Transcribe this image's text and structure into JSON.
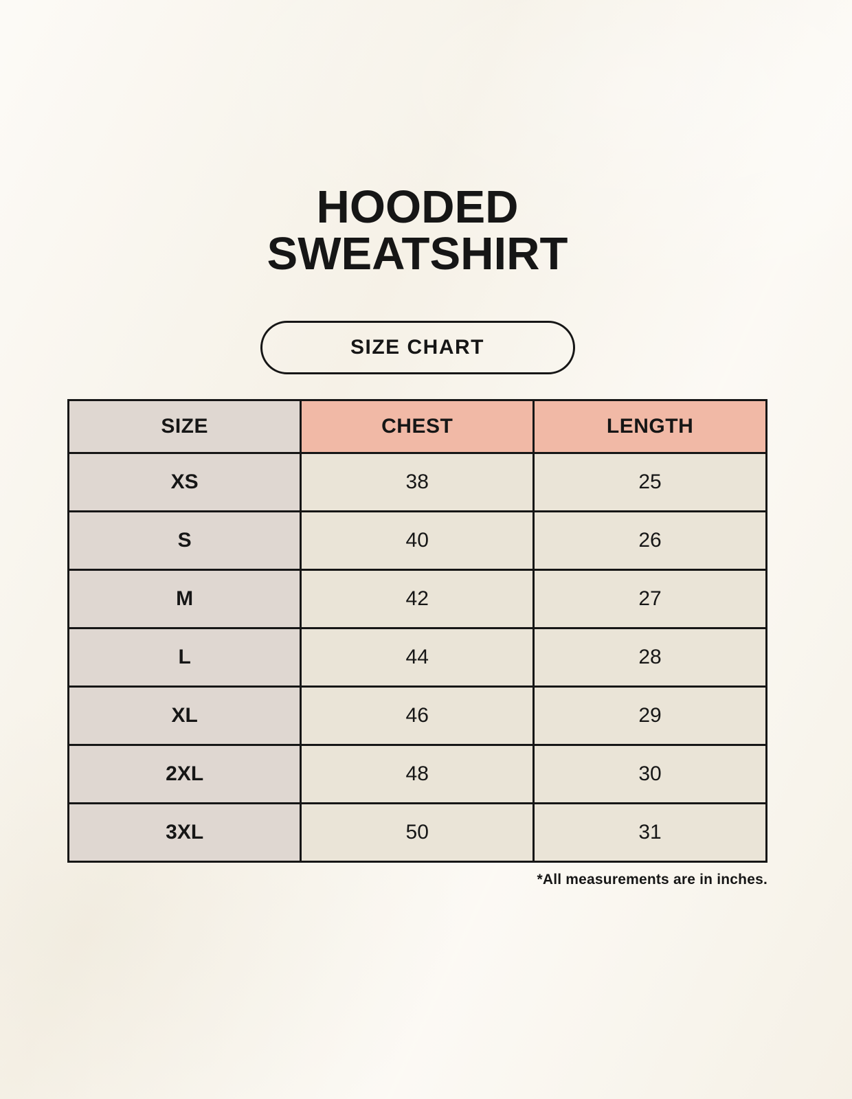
{
  "title": {
    "line1": "HOODED",
    "line2": "SWEATSHIRT"
  },
  "badge": {
    "label": "SIZE CHART"
  },
  "table": {
    "columns": [
      "SIZE",
      "CHEST",
      "LENGTH"
    ],
    "rows": [
      [
        "XS",
        "38",
        "25"
      ],
      [
        "S",
        "40",
        "26"
      ],
      [
        "M",
        "42",
        "27"
      ],
      [
        "L",
        "44",
        "28"
      ],
      [
        "XL",
        "46",
        "29"
      ],
      [
        "2XL",
        "48",
        "30"
      ],
      [
        "3XL",
        "50",
        "31"
      ]
    ]
  },
  "footnote": "*All measurements are in inches.",
  "colors": {
    "page-bg": "#F9F5EC",
    "header-accent": "#F1B9A6",
    "size-col-bg": "#DFD7D1",
    "cell-bg": "#EAE4D7",
    "line": "#161616",
    "ink": "#161616"
  },
  "chart_data": {
    "type": "table",
    "title": "HOODED SWEATSHIRT SIZE CHART",
    "columns": [
      "SIZE",
      "CHEST",
      "LENGTH"
    ],
    "units": "inches",
    "rows": [
      {
        "size": "XS",
        "chest": 38,
        "length": 25
      },
      {
        "size": "S",
        "chest": 40,
        "length": 26
      },
      {
        "size": "M",
        "chest": 42,
        "length": 27
      },
      {
        "size": "L",
        "chest": 44,
        "length": 28
      },
      {
        "size": "XL",
        "chest": 46,
        "length": 29
      },
      {
        "size": "2XL",
        "chest": 48,
        "length": 30
      },
      {
        "size": "3XL",
        "chest": 50,
        "length": 31
      }
    ]
  }
}
